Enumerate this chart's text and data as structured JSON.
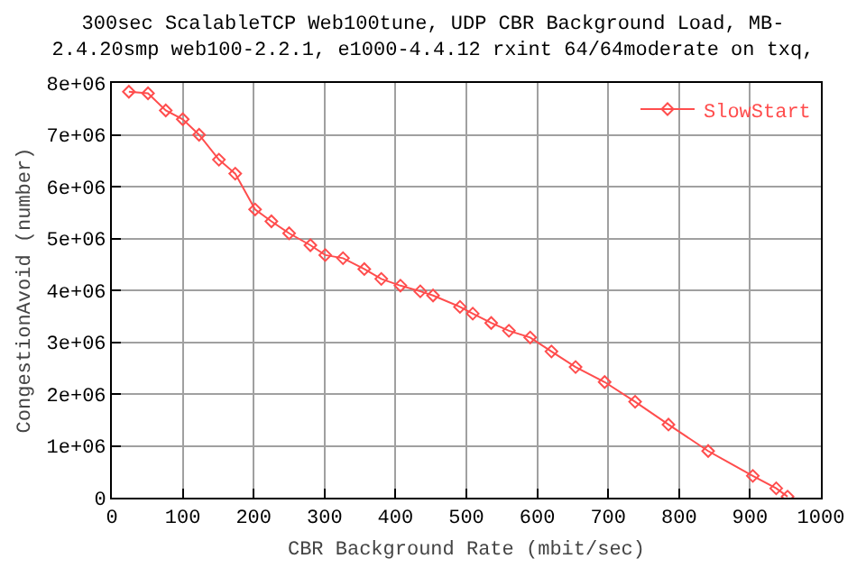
{
  "chart_data": {
    "type": "line",
    "title": "300sec ScalableTCP Web100tune, UDP CBR Background Load, MB-\n2.4.20smp web100-2.2.1, e1000-4.4.12 rxint 64/64moderate on txq,",
    "xlabel": "CBR Background Rate (mbit/sec)",
    "ylabel": "CongestionAvoid (number)",
    "x": [
      24,
      51,
      76,
      100,
      123,
      151,
      174,
      202,
      225,
      250,
      280,
      301,
      326,
      356,
      380,
      407,
      435,
      453,
      491,
      509,
      535,
      560,
      590,
      620,
      654,
      695,
      738,
      785,
      841,
      904,
      937,
      953
    ],
    "series": [
      {
        "name": "SlowStart",
        "color": "#ff4d4d",
        "values": [
          7830000,
          7800000,
          7470000,
          7300000,
          7000000,
          6520000,
          6250000,
          5560000,
          5330000,
          5100000,
          4870000,
          4680000,
          4620000,
          4410000,
          4220000,
          4090000,
          3980000,
          3900000,
          3680000,
          3550000,
          3370000,
          3220000,
          3090000,
          2820000,
          2520000,
          2230000,
          1850000,
          1410000,
          900000,
          420000,
          180000,
          20000
        ]
      }
    ],
    "xlim": [
      0,
      1000
    ],
    "xticks": [
      0,
      100,
      200,
      300,
      400,
      500,
      600,
      700,
      800,
      900,
      1000
    ],
    "ylim": [
      0,
      8000000
    ],
    "yticks": [
      {
        "value": 0,
        "label": "0"
      },
      {
        "value": 1000000,
        "label": "1e+06"
      },
      {
        "value": 2000000,
        "label": "2e+06"
      },
      {
        "value": 3000000,
        "label": "3e+06"
      },
      {
        "value": 4000000,
        "label": "4e+06"
      },
      {
        "value": 5000000,
        "label": "5e+06"
      },
      {
        "value": 6000000,
        "label": "6e+06"
      },
      {
        "value": 7000000,
        "label": "7e+06"
      },
      {
        "value": 8000000,
        "label": "8e+06"
      }
    ],
    "grid": true,
    "legend": "top right",
    "marker": "diamond",
    "line_style": "solid"
  }
}
